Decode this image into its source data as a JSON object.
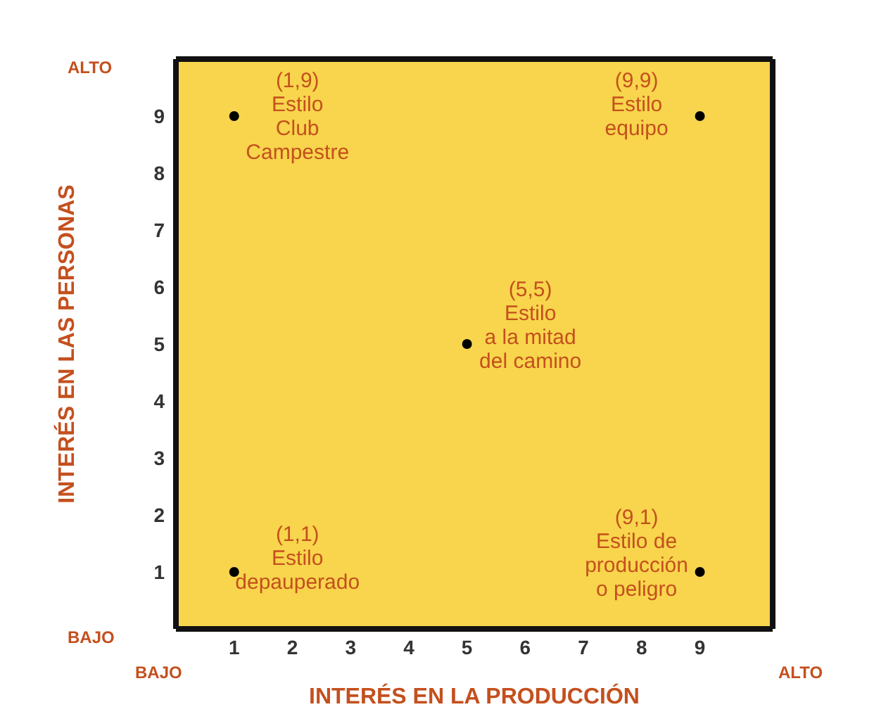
{
  "chart_data": {
    "type": "scatter",
    "xlabel": "INTERÉS EN LA PRODUCCIÓN",
    "ylabel": "INTERÉS EN LAS PERSONAS",
    "x": [
      1,
      9,
      5,
      1,
      9
    ],
    "values": [
      9,
      9,
      5,
      1,
      1
    ],
    "color": "#000000",
    "marker": "circle",
    "xlim": [
      0,
      10.25
    ],
    "ylim": [
      0,
      10
    ],
    "xticks": [
      1,
      2,
      3,
      4,
      5,
      6,
      7,
      8,
      9
    ],
    "yticks": [
      1,
      2,
      3,
      4,
      5,
      6,
      7,
      8,
      9
    ],
    "annotations": [
      {
        "text": "(1,9)\nEstilo\nClub\nCampestre",
        "x": 1,
        "y": 9
      },
      {
        "text": "(9,9)\nEstilo\nequipo",
        "x": 9,
        "y": 9
      },
      {
        "text": "(5,5)\nEstilo\na la mitad\ndel camino",
        "x": 5,
        "y": 5
      },
      {
        "text": "(1,1)\nEstilo\ndepauperado",
        "x": 1,
        "y": 1
      },
      {
        "text": "(9,1)\nEstilo de\nproducción\no peligro",
        "x": 9,
        "y": 1
      },
      "ALTO",
      "BAJO",
      "BAJO",
      "ALTO"
    ]
  }
}
